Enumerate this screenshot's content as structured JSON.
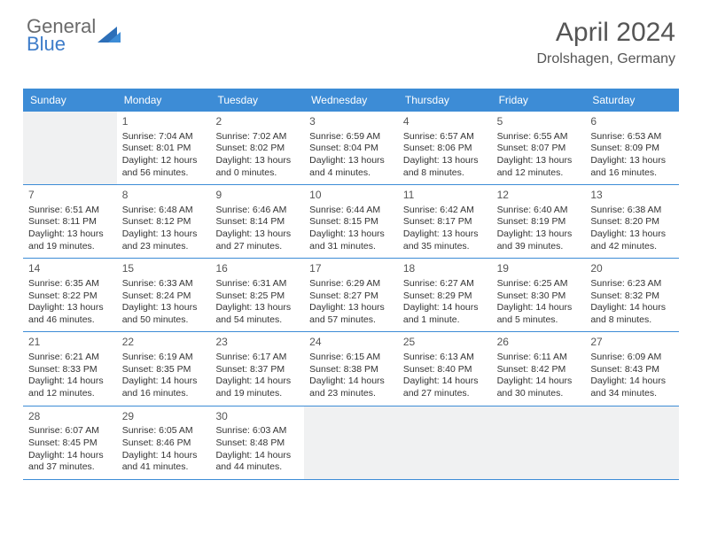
{
  "logo": {
    "textGray": "General",
    "textBlue": "Blue"
  },
  "title": "April 2024",
  "location": "Drolshagen, Germany",
  "colors": {
    "headerBar": "#3d8cd6",
    "headerText": "#ffffff",
    "emptyCell": "#f0f1f2",
    "weekBorder": "#3d8cd6",
    "logoGray": "#6a6a6a",
    "logoBlue": "#3d7cc9",
    "bodyText": "#333333",
    "titleText": "#555555"
  },
  "dayNames": [
    "Sunday",
    "Monday",
    "Tuesday",
    "Wednesday",
    "Thursday",
    "Friday",
    "Saturday"
  ],
  "weeks": [
    [
      null,
      {
        "n": "1",
        "sr": "7:04 AM",
        "ss": "8:01 PM",
        "dl": "12 hours and 56 minutes."
      },
      {
        "n": "2",
        "sr": "7:02 AM",
        "ss": "8:02 PM",
        "dl": "13 hours and 0 minutes."
      },
      {
        "n": "3",
        "sr": "6:59 AM",
        "ss": "8:04 PM",
        "dl": "13 hours and 4 minutes."
      },
      {
        "n": "4",
        "sr": "6:57 AM",
        "ss": "8:06 PM",
        "dl": "13 hours and 8 minutes."
      },
      {
        "n": "5",
        "sr": "6:55 AM",
        "ss": "8:07 PM",
        "dl": "13 hours and 12 minutes."
      },
      {
        "n": "6",
        "sr": "6:53 AM",
        "ss": "8:09 PM",
        "dl": "13 hours and 16 minutes."
      }
    ],
    [
      {
        "n": "7",
        "sr": "6:51 AM",
        "ss": "8:11 PM",
        "dl": "13 hours and 19 minutes."
      },
      {
        "n": "8",
        "sr": "6:48 AM",
        "ss": "8:12 PM",
        "dl": "13 hours and 23 minutes."
      },
      {
        "n": "9",
        "sr": "6:46 AM",
        "ss": "8:14 PM",
        "dl": "13 hours and 27 minutes."
      },
      {
        "n": "10",
        "sr": "6:44 AM",
        "ss": "8:15 PM",
        "dl": "13 hours and 31 minutes."
      },
      {
        "n": "11",
        "sr": "6:42 AM",
        "ss": "8:17 PM",
        "dl": "13 hours and 35 minutes."
      },
      {
        "n": "12",
        "sr": "6:40 AM",
        "ss": "8:19 PM",
        "dl": "13 hours and 39 minutes."
      },
      {
        "n": "13",
        "sr": "6:38 AM",
        "ss": "8:20 PM",
        "dl": "13 hours and 42 minutes."
      }
    ],
    [
      {
        "n": "14",
        "sr": "6:35 AM",
        "ss": "8:22 PM",
        "dl": "13 hours and 46 minutes."
      },
      {
        "n": "15",
        "sr": "6:33 AM",
        "ss": "8:24 PM",
        "dl": "13 hours and 50 minutes."
      },
      {
        "n": "16",
        "sr": "6:31 AM",
        "ss": "8:25 PM",
        "dl": "13 hours and 54 minutes."
      },
      {
        "n": "17",
        "sr": "6:29 AM",
        "ss": "8:27 PM",
        "dl": "13 hours and 57 minutes."
      },
      {
        "n": "18",
        "sr": "6:27 AM",
        "ss": "8:29 PM",
        "dl": "14 hours and 1 minute."
      },
      {
        "n": "19",
        "sr": "6:25 AM",
        "ss": "8:30 PM",
        "dl": "14 hours and 5 minutes."
      },
      {
        "n": "20",
        "sr": "6:23 AM",
        "ss": "8:32 PM",
        "dl": "14 hours and 8 minutes."
      }
    ],
    [
      {
        "n": "21",
        "sr": "6:21 AM",
        "ss": "8:33 PM",
        "dl": "14 hours and 12 minutes."
      },
      {
        "n": "22",
        "sr": "6:19 AM",
        "ss": "8:35 PM",
        "dl": "14 hours and 16 minutes."
      },
      {
        "n": "23",
        "sr": "6:17 AM",
        "ss": "8:37 PM",
        "dl": "14 hours and 19 minutes."
      },
      {
        "n": "24",
        "sr": "6:15 AM",
        "ss": "8:38 PM",
        "dl": "14 hours and 23 minutes."
      },
      {
        "n": "25",
        "sr": "6:13 AM",
        "ss": "8:40 PM",
        "dl": "14 hours and 27 minutes."
      },
      {
        "n": "26",
        "sr": "6:11 AM",
        "ss": "8:42 PM",
        "dl": "14 hours and 30 minutes."
      },
      {
        "n": "27",
        "sr": "6:09 AM",
        "ss": "8:43 PM",
        "dl": "14 hours and 34 minutes."
      }
    ],
    [
      {
        "n": "28",
        "sr": "6:07 AM",
        "ss": "8:45 PM",
        "dl": "14 hours and 37 minutes."
      },
      {
        "n": "29",
        "sr": "6:05 AM",
        "ss": "8:46 PM",
        "dl": "14 hours and 41 minutes."
      },
      {
        "n": "30",
        "sr": "6:03 AM",
        "ss": "8:48 PM",
        "dl": "14 hours and 44 minutes."
      },
      null,
      null,
      null,
      null
    ]
  ],
  "labels": {
    "sunrise": "Sunrise:",
    "sunset": "Sunset:",
    "daylight": "Daylight:"
  }
}
